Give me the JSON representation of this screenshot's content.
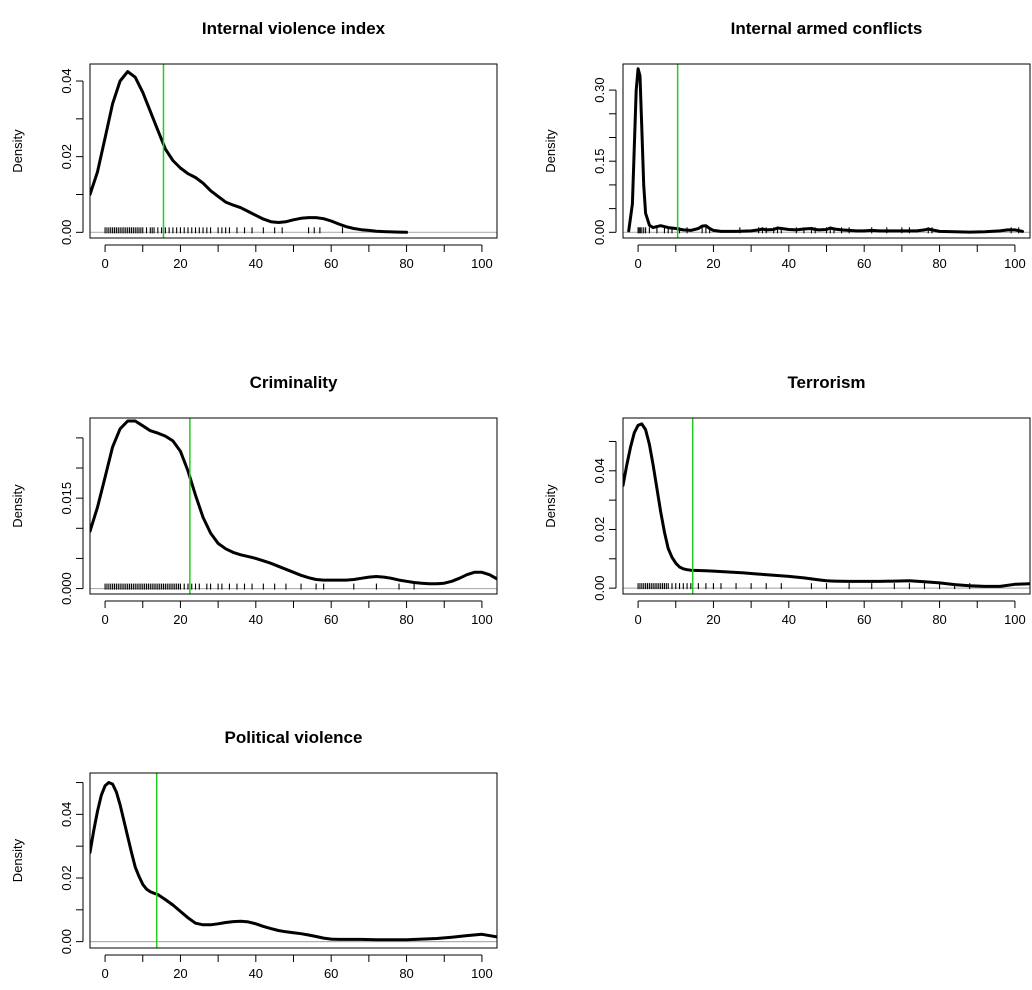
{
  "chart_data": [
    {
      "type": "area",
      "title": "Internal violence index",
      "xlabel": "",
      "ylabel": "Density",
      "xlim": [
        -4,
        104
      ],
      "ylim": [
        -0.0015,
        0.0445
      ],
      "xticks": [
        0,
        20,
        40,
        60,
        80,
        100
      ],
      "xtick_labels": [
        "0",
        "20",
        "40",
        "60",
        "80",
        "100"
      ],
      "yticks": [
        0.0,
        0.02,
        0.04
      ],
      "ytick_labels": [
        "0.00",
        "0.02",
        "0.04"
      ],
      "yminor_ticks": [
        0.01,
        0.03
      ],
      "reference_line": {
        "x": 15.5,
        "color": "#22cc22"
      },
      "density": {
        "x": [
          -4,
          -2,
          0,
          2,
          4,
          6,
          8,
          10,
          12,
          14,
          16,
          18,
          20,
          22,
          24,
          26,
          28,
          30,
          32,
          34,
          36,
          38,
          40,
          42,
          44,
          46,
          48,
          50,
          52,
          54,
          56,
          58,
          60,
          62,
          64,
          66,
          68,
          70,
          72,
          74,
          76,
          78,
          80
        ],
        "y": [
          0.01,
          0.016,
          0.025,
          0.034,
          0.04,
          0.0425,
          0.041,
          0.037,
          0.032,
          0.027,
          0.022,
          0.019,
          0.017,
          0.0155,
          0.0145,
          0.013,
          0.011,
          0.0095,
          0.008,
          0.0072,
          0.0065,
          0.0055,
          0.0045,
          0.0035,
          0.0028,
          0.0026,
          0.0028,
          0.0033,
          0.0037,
          0.0039,
          0.0039,
          0.0036,
          0.003,
          0.0022,
          0.0015,
          0.001,
          0.0007,
          0.0005,
          0.0003,
          0.0002,
          0.0001,
          5e-05,
          0.0
        ]
      },
      "rug": [
        0,
        0.5,
        1,
        1.5,
        2,
        2.5,
        3,
        3.5,
        4,
        4.5,
        5,
        5.5,
        6,
        6.5,
        7,
        7.5,
        8,
        8.5,
        9,
        9.5,
        10,
        11,
        12,
        12.5,
        13,
        14,
        15,
        16,
        17,
        18,
        19,
        20,
        21,
        22,
        23,
        24,
        25,
        26,
        27,
        28,
        30,
        31,
        32,
        33,
        35,
        37,
        39,
        42,
        45,
        47,
        54,
        55.5,
        57,
        63
      ]
    },
    {
      "type": "area",
      "title": "Internal armed conflicts",
      "xlabel": "",
      "ylabel": "Density",
      "xlim": [
        -4,
        104
      ],
      "ylim": [
        -0.012,
        0.355
      ],
      "xticks": [
        0,
        20,
        40,
        60,
        80,
        100
      ],
      "xtick_labels": [
        "0",
        "20",
        "40",
        "60",
        "80",
        "100"
      ],
      "yticks": [
        0.0,
        0.15,
        0.3
      ],
      "ytick_labels": [
        "0.00",
        "0.15",
        "0.30"
      ],
      "yminor_ticks": [
        0.05,
        0.1,
        0.2,
        0.25
      ],
      "reference_line": {
        "x": 10.5,
        "color": "#22cc22"
      },
      "density": {
        "x": [
          -2.5,
          -1.5,
          -1,
          -0.5,
          0,
          0.5,
          1,
          1.5,
          2,
          3,
          4,
          5,
          6,
          8,
          10,
          12,
          14,
          16,
          17,
          18,
          19,
          20,
          22,
          26,
          30,
          32,
          33,
          34,
          36,
          37,
          38,
          40,
          42,
          44,
          46,
          47,
          48,
          50,
          51,
          52,
          54,
          56,
          58,
          60,
          62,
          64,
          66,
          68,
          70,
          72,
          74,
          76,
          77,
          78,
          80,
          84,
          88,
          92,
          96,
          98,
          100,
          102
        ],
        "y": [
          0.003,
          0.06,
          0.18,
          0.3,
          0.345,
          0.33,
          0.22,
          0.1,
          0.04,
          0.015,
          0.01,
          0.012,
          0.014,
          0.01,
          0.008,
          0.005,
          0.004,
          0.008,
          0.013,
          0.014,
          0.008,
          0.004,
          0.002,
          0.002,
          0.003,
          0.005,
          0.007,
          0.005,
          0.006,
          0.009,
          0.008,
          0.006,
          0.005,
          0.007,
          0.008,
          0.006,
          0.005,
          0.006,
          0.009,
          0.007,
          0.005,
          0.004,
          0.003,
          0.003,
          0.004,
          0.003,
          0.003,
          0.003,
          0.003,
          0.003,
          0.003,
          0.005,
          0.007,
          0.005,
          0.002,
          0.001,
          0.0005,
          0.001,
          0.003,
          0.005,
          0.005,
          0.002
        ]
      },
      "rug": [
        0,
        0.3,
        0.6,
        1,
        1.5,
        2,
        3,
        5,
        7,
        8,
        9,
        11,
        13,
        17,
        18,
        19,
        27,
        32,
        33,
        34,
        36,
        37,
        38,
        42,
        44,
        46,
        47,
        50,
        51,
        52,
        54,
        56,
        62,
        66,
        70,
        72,
        77,
        78,
        99,
        101
      ]
    },
    {
      "type": "area",
      "title": "Criminality",
      "xlabel": "",
      "ylabel": "Density",
      "xlim": [
        -4,
        104
      ],
      "ylim": [
        -0.0009,
        0.0283
      ],
      "xticks": [
        0,
        20,
        40,
        60,
        80,
        100
      ],
      "xtick_labels": [
        "0",
        "20",
        "40",
        "60",
        "80",
        "100"
      ],
      "yticks": [
        0.0,
        0.015
      ],
      "ytick_labels": [
        "0.000",
        "0.015"
      ],
      "yminor_ticks": [
        0.005,
        0.01,
        0.02,
        0.025
      ],
      "reference_line": {
        "x": 22.5,
        "color": "#22cc22"
      },
      "density": {
        "x": [
          -4,
          -2,
          0,
          2,
          4,
          6,
          8,
          10,
          12,
          14,
          16,
          18,
          20,
          22,
          24,
          26,
          28,
          30,
          32,
          34,
          36,
          38,
          40,
          42,
          44,
          46,
          48,
          50,
          52,
          54,
          56,
          58,
          60,
          62,
          64,
          66,
          68,
          70,
          72,
          74,
          76,
          78,
          80,
          82,
          84,
          86,
          88,
          90,
          92,
          94,
          96,
          98,
          100,
          102,
          104
        ],
        "y": [
          0.0095,
          0.0135,
          0.0185,
          0.0235,
          0.0265,
          0.0278,
          0.0278,
          0.027,
          0.0262,
          0.0258,
          0.0253,
          0.0245,
          0.0228,
          0.0195,
          0.0155,
          0.0118,
          0.0092,
          0.0075,
          0.0066,
          0.006,
          0.0056,
          0.0053,
          0.005,
          0.0046,
          0.0042,
          0.0037,
          0.0032,
          0.0027,
          0.0022,
          0.0018,
          0.0015,
          0.0014,
          0.0014,
          0.0014,
          0.0014,
          0.0015,
          0.0017,
          0.0019,
          0.002,
          0.0019,
          0.0017,
          0.0014,
          0.0012,
          0.001,
          0.0009,
          0.0008,
          0.0008,
          0.0009,
          0.0012,
          0.0017,
          0.0023,
          0.0027,
          0.0027,
          0.0023,
          0.0016
        ]
      },
      "rug": [
        0,
        0.5,
        1,
        1.5,
        2,
        2.5,
        3,
        3.5,
        4,
        4.5,
        5,
        5.5,
        6,
        6.5,
        7,
        7.5,
        8,
        8.5,
        9,
        9.5,
        10,
        10.5,
        11,
        11.5,
        12,
        12.5,
        13,
        13.5,
        14,
        14.5,
        15,
        15.5,
        16,
        16.5,
        17,
        17.5,
        18,
        18.5,
        19,
        19.5,
        20,
        21,
        22,
        23,
        24,
        25,
        27,
        28,
        30,
        31,
        33,
        35,
        37,
        39,
        42,
        45,
        48,
        52,
        56,
        58,
        66,
        72,
        78,
        82
      ]
    },
    {
      "type": "area",
      "title": "Terrorism",
      "xlabel": "",
      "ylabel": "Density",
      "xlim": [
        -4,
        104
      ],
      "ylim": [
        -0.002,
        0.058
      ],
      "xticks": [
        0,
        20,
        40,
        60,
        80,
        100
      ],
      "xtick_labels": [
        "0",
        "20",
        "40",
        "60",
        "80",
        "100"
      ],
      "yticks": [
        0.0,
        0.02,
        0.04
      ],
      "ytick_labels": [
        "0.00",
        "0.02",
        "0.04"
      ],
      "yminor_ticks": [
        0.01,
        0.03,
        0.05
      ],
      "reference_line": {
        "x": 14.5,
        "color": "#22cc22"
      },
      "density": {
        "x": [
          -4,
          -3,
          -2,
          -1,
          0,
          1,
          2,
          3,
          4,
          5,
          6,
          7,
          8,
          9,
          10,
          11,
          12,
          13,
          14,
          16,
          18,
          20,
          24,
          28,
          32,
          36,
          40,
          44,
          48,
          50,
          52,
          56,
          60,
          64,
          68,
          72,
          76,
          80,
          84,
          88,
          92,
          96,
          100,
          104
        ],
        "y": [
          0.035,
          0.042,
          0.048,
          0.053,
          0.0555,
          0.056,
          0.054,
          0.049,
          0.042,
          0.034,
          0.026,
          0.019,
          0.0135,
          0.0105,
          0.0085,
          0.0072,
          0.0066,
          0.0063,
          0.0061,
          0.006,
          0.0059,
          0.0058,
          0.0055,
          0.0052,
          0.0048,
          0.0044,
          0.004,
          0.0035,
          0.0028,
          0.0025,
          0.0024,
          0.0023,
          0.0023,
          0.0023,
          0.0024,
          0.0025,
          0.0022,
          0.0018,
          0.0012,
          0.0008,
          0.0006,
          0.0006,
          0.0013,
          0.0015
        ]
      },
      "rug": [
        0,
        0.5,
        1,
        1.5,
        2,
        2.5,
        3,
        3.5,
        4,
        4.5,
        5,
        5.5,
        6,
        6.5,
        7,
        7.5,
        8,
        9,
        10,
        11,
        12,
        13,
        14,
        16,
        18,
        20,
        22,
        26,
        30,
        34,
        38,
        46,
        50,
        56,
        62,
        68,
        72,
        76,
        80,
        84,
        88
      ]
    },
    {
      "type": "area",
      "title": "Political violence",
      "xlabel": "",
      "ylabel": "Density",
      "xlim": [
        -4,
        104
      ],
      "ylim": [
        -0.002,
        0.053
      ],
      "xticks": [
        0,
        20,
        40,
        60,
        80,
        100
      ],
      "xtick_labels": [
        "0",
        "20",
        "40",
        "60",
        "80",
        "100"
      ],
      "yticks": [
        0.0,
        0.02,
        0.04
      ],
      "ytick_labels": [
        "0.00",
        "0.02",
        "0.04"
      ],
      "yminor_ticks": [
        0.01,
        0.03,
        0.05
      ],
      "reference_line": {
        "x": 13.7,
        "color": "#22cc22"
      },
      "density": {
        "x": [
          -4,
          -3,
          -2,
          -1,
          0,
          1,
          2,
          3,
          4,
          5,
          6,
          7,
          8,
          9,
          10,
          11,
          12,
          13,
          14,
          16,
          18,
          20,
          22,
          24,
          26,
          28,
          30,
          32,
          34,
          36,
          38,
          40,
          42,
          44,
          46,
          48,
          50,
          52,
          54,
          56,
          58,
          60,
          62,
          64,
          68,
          72,
          76,
          80,
          84,
          88,
          92,
          96,
          100,
          104
        ],
        "y": [
          0.028,
          0.035,
          0.041,
          0.046,
          0.049,
          0.05,
          0.0495,
          0.047,
          0.043,
          0.038,
          0.033,
          0.028,
          0.0235,
          0.0205,
          0.018,
          0.0165,
          0.0157,
          0.0152,
          0.0148,
          0.0132,
          0.0115,
          0.0095,
          0.0075,
          0.0058,
          0.0053,
          0.0053,
          0.0056,
          0.006,
          0.0063,
          0.0064,
          0.0062,
          0.0056,
          0.0048,
          0.0041,
          0.0035,
          0.0031,
          0.0028,
          0.0025,
          0.0021,
          0.0016,
          0.0011,
          0.0008,
          0.0007,
          0.0007,
          0.0007,
          0.0006,
          0.0006,
          0.0006,
          0.0008,
          0.001,
          0.0014,
          0.0019,
          0.0023,
          0.0015
        ]
      },
      "rug": []
    }
  ]
}
